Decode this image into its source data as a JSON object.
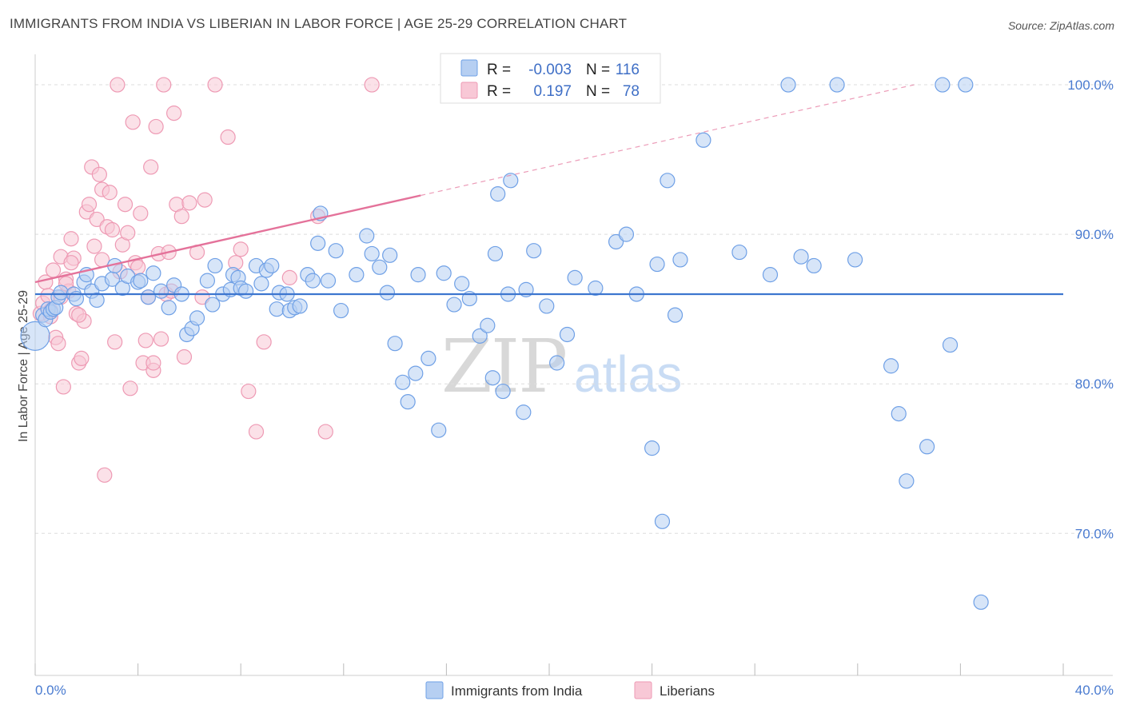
{
  "title": "IMMIGRANTS FROM INDIA VS LIBERIAN IN LABOR FORCE | AGE 25-29 CORRELATION CHART",
  "source": "Source: ZipAtlas.com",
  "colors": {
    "india": "#6fa0e6",
    "india_fill": "#b6cff2",
    "india_line": "#3d76cf",
    "liberian": "#ee9ab4",
    "liberian_fill": "#f8c8d6",
    "liberian_line": "#e4729a",
    "axis_label": "#4a7bd0",
    "grid": "#dddddd"
  },
  "stats": {
    "r_label": "R =",
    "n_label": "N =",
    "india": {
      "r": "-0.003",
      "n": "116"
    },
    "liberian": {
      "r": "0.197",
      "n": "78"
    }
  },
  "watermark": {
    "zip": "ZIP",
    "atlas": "atlas"
  },
  "chart_data": {
    "type": "scatter",
    "title": "IMMIGRANTS FROM INDIA VS LIBERIAN IN LABOR FORCE | AGE 25-29 CORRELATION CHART",
    "xlabel": "",
    "ylabel": "In Labor Force | Age 25-29",
    "xlim": [
      0,
      40
    ],
    "ylim": [
      60.5,
      101.5
    ],
    "x_tick_labels": [
      "0.0%",
      "40.0%"
    ],
    "y_ticks": [
      70,
      80,
      90,
      100
    ],
    "y_tick_labels": [
      "70.0%",
      "80.0%",
      "90.0%",
      "100.0%"
    ],
    "grid": true,
    "legend_position": "bottom",
    "series": [
      {
        "name": "Immigrants from India",
        "color": "#6fa0e6",
        "trend": {
          "x": [
            0,
            40
          ],
          "y": [
            86.0,
            86.0
          ],
          "style": "solid"
        },
        "points": [
          [
            0.0,
            83.2
          ],
          [
            0.3,
            84.6
          ],
          [
            0.4,
            84.3
          ],
          [
            0.5,
            85.0
          ],
          [
            0.6,
            84.8
          ],
          [
            0.7,
            85.0
          ],
          [
            0.8,
            85.1
          ],
          [
            0.9,
            85.8
          ],
          [
            1.0,
            86.1
          ],
          [
            1.5,
            86.0
          ],
          [
            1.6,
            85.7
          ],
          [
            1.9,
            86.8
          ],
          [
            2.0,
            87.3
          ],
          [
            2.2,
            86.2
          ],
          [
            2.4,
            85.6
          ],
          [
            2.6,
            86.7
          ],
          [
            3.0,
            87.0
          ],
          [
            3.1,
            87.9
          ],
          [
            3.4,
            86.4
          ],
          [
            3.6,
            87.2
          ],
          [
            4.0,
            86.8
          ],
          [
            4.1,
            86.9
          ],
          [
            4.4,
            85.8
          ],
          [
            4.6,
            87.4
          ],
          [
            4.9,
            86.2
          ],
          [
            5.2,
            85.1
          ],
          [
            5.4,
            86.6
          ],
          [
            5.7,
            86.0
          ],
          [
            5.9,
            83.3
          ],
          [
            6.1,
            83.7
          ],
          [
            6.3,
            84.4
          ],
          [
            6.7,
            86.9
          ],
          [
            6.9,
            85.3
          ],
          [
            7.0,
            87.9
          ],
          [
            7.3,
            86.0
          ],
          [
            7.6,
            86.3
          ],
          [
            7.7,
            87.3
          ],
          [
            7.9,
            87.1
          ],
          [
            8.0,
            86.4
          ],
          [
            8.2,
            86.2
          ],
          [
            8.6,
            87.9
          ],
          [
            8.8,
            86.7
          ],
          [
            9.0,
            87.6
          ],
          [
            9.2,
            87.9
          ],
          [
            9.4,
            85.0
          ],
          [
            9.5,
            86.1
          ],
          [
            9.8,
            86.0
          ],
          [
            9.9,
            84.9
          ],
          [
            10.1,
            85.1
          ],
          [
            10.3,
            85.2
          ],
          [
            10.6,
            87.3
          ],
          [
            10.8,
            86.9
          ],
          [
            11.0,
            89.4
          ],
          [
            11.1,
            91.4
          ],
          [
            11.4,
            86.9
          ],
          [
            11.7,
            88.9
          ],
          [
            11.9,
            84.9
          ],
          [
            12.5,
            87.3
          ],
          [
            12.9,
            89.9
          ],
          [
            13.1,
            88.7
          ],
          [
            13.4,
            87.8
          ],
          [
            13.7,
            86.1
          ],
          [
            13.8,
            88.6
          ],
          [
            14.0,
            82.7
          ],
          [
            14.3,
            80.1
          ],
          [
            14.5,
            78.8
          ],
          [
            14.8,
            80.7
          ],
          [
            14.9,
            87.3
          ],
          [
            15.3,
            81.7
          ],
          [
            15.7,
            76.9
          ],
          [
            15.9,
            87.4
          ],
          [
            16.3,
            85.3
          ],
          [
            16.6,
            86.7
          ],
          [
            16.9,
            85.7
          ],
          [
            17.3,
            83.2
          ],
          [
            17.6,
            83.9
          ],
          [
            17.8,
            80.4
          ],
          [
            17.9,
            88.7
          ],
          [
            18.0,
            92.7
          ],
          [
            18.2,
            79.5
          ],
          [
            18.4,
            86.0
          ],
          [
            18.5,
            93.6
          ],
          [
            19.0,
            78.1
          ],
          [
            19.1,
            86.3
          ],
          [
            19.4,
            88.9
          ],
          [
            19.9,
            85.2
          ],
          [
            20.3,
            81.4
          ],
          [
            20.7,
            83.3
          ],
          [
            21.0,
            87.1
          ],
          [
            21.8,
            86.4
          ],
          [
            22.6,
            89.5
          ],
          [
            23.0,
            90.0
          ],
          [
            23.4,
            86.0
          ],
          [
            24.0,
            75.7
          ],
          [
            24.2,
            88.0
          ],
          [
            24.4,
            70.8
          ],
          [
            24.6,
            93.6
          ],
          [
            24.9,
            84.6
          ],
          [
            25.1,
            88.3
          ],
          [
            26.0,
            96.3
          ],
          [
            27.4,
            88.8
          ],
          [
            28.6,
            87.3
          ],
          [
            29.3,
            100.0
          ],
          [
            29.8,
            88.5
          ],
          [
            30.3,
            87.9
          ],
          [
            31.2,
            100.0
          ],
          [
            31.9,
            88.3
          ],
          [
            33.3,
            81.2
          ],
          [
            33.6,
            78.0
          ],
          [
            33.9,
            73.5
          ],
          [
            34.7,
            75.8
          ],
          [
            35.3,
            100.0
          ],
          [
            35.6,
            82.6
          ],
          [
            36.2,
            100.0
          ],
          [
            36.8,
            65.4
          ]
        ]
      },
      {
        "name": "Liberians",
        "color": "#ee9ab4",
        "trend": {
          "x": [
            0,
            15.0
          ],
          "y": [
            86.8,
            92.6
          ],
          "style": "solid",
          "extension_to": [
            34.2,
            100.0
          ],
          "extension_style": "dashed"
        },
        "points": [
          [
            0.2,
            84.7
          ],
          [
            0.3,
            85.4
          ],
          [
            0.4,
            86.8
          ],
          [
            0.5,
            85.9
          ],
          [
            0.6,
            84.5
          ],
          [
            0.7,
            87.6
          ],
          [
            0.8,
            83.1
          ],
          [
            0.9,
            82.7
          ],
          [
            1.0,
            88.5
          ],
          [
            1.1,
            79.8
          ],
          [
            1.2,
            87.0
          ],
          [
            1.3,
            86.2
          ],
          [
            1.4,
            89.7
          ],
          [
            1.5,
            88.4
          ],
          [
            1.6,
            84.7
          ],
          [
            1.7,
            81.4
          ],
          [
            1.8,
            81.7
          ],
          [
            1.9,
            84.2
          ],
          [
            2.0,
            91.5
          ],
          [
            2.1,
            92.0
          ],
          [
            2.2,
            94.5
          ],
          [
            2.3,
            89.2
          ],
          [
            2.4,
            91.0
          ],
          [
            2.5,
            94.0
          ],
          [
            2.6,
            93.0
          ],
          [
            2.7,
            73.9
          ],
          [
            2.8,
            90.5
          ],
          [
            2.9,
            92.8
          ],
          [
            3.0,
            90.3
          ],
          [
            3.1,
            82.8
          ],
          [
            3.2,
            100.0
          ],
          [
            3.4,
            89.3
          ],
          [
            3.5,
            92.0
          ],
          [
            3.6,
            90.1
          ],
          [
            3.7,
            79.7
          ],
          [
            3.8,
            97.5
          ],
          [
            3.9,
            88.1
          ],
          [
            4.0,
            87.8
          ],
          [
            4.1,
            91.4
          ],
          [
            4.2,
            81.4
          ],
          [
            4.3,
            82.9
          ],
          [
            4.4,
            85.8
          ],
          [
            4.5,
            94.5
          ],
          [
            4.6,
            80.9
          ],
          [
            4.7,
            97.2
          ],
          [
            4.8,
            88.7
          ],
          [
            4.9,
            83.0
          ],
          [
            5.0,
            100.0
          ],
          [
            5.1,
            86.0
          ],
          [
            5.2,
            88.8
          ],
          [
            5.4,
            98.1
          ],
          [
            5.5,
            92.0
          ],
          [
            5.7,
            91.2
          ],
          [
            5.8,
            81.8
          ],
          [
            6.0,
            92.1
          ],
          [
            6.3,
            88.8
          ],
          [
            6.6,
            92.3
          ],
          [
            7.0,
            100.0
          ],
          [
            7.5,
            96.5
          ],
          [
            7.8,
            88.1
          ],
          [
            8.0,
            89.0
          ],
          [
            8.3,
            79.5
          ],
          [
            8.6,
            76.8
          ],
          [
            8.9,
            82.8
          ],
          [
            9.9,
            87.1
          ],
          [
            11.0,
            91.2
          ],
          [
            11.3,
            76.8
          ],
          [
            13.1,
            100.0
          ],
          [
            0.6,
            84.9
          ],
          [
            1.0,
            85.8
          ],
          [
            1.2,
            86.7
          ],
          [
            1.4,
            88.1
          ],
          [
            1.7,
            84.6
          ],
          [
            2.6,
            88.3
          ],
          [
            3.3,
            87.5
          ],
          [
            4.6,
            81.4
          ],
          [
            5.3,
            86.2
          ],
          [
            6.5,
            85.8
          ]
        ]
      }
    ]
  },
  "legend": {
    "india_label": "Immigrants from India",
    "liberian_label": "Liberians"
  }
}
